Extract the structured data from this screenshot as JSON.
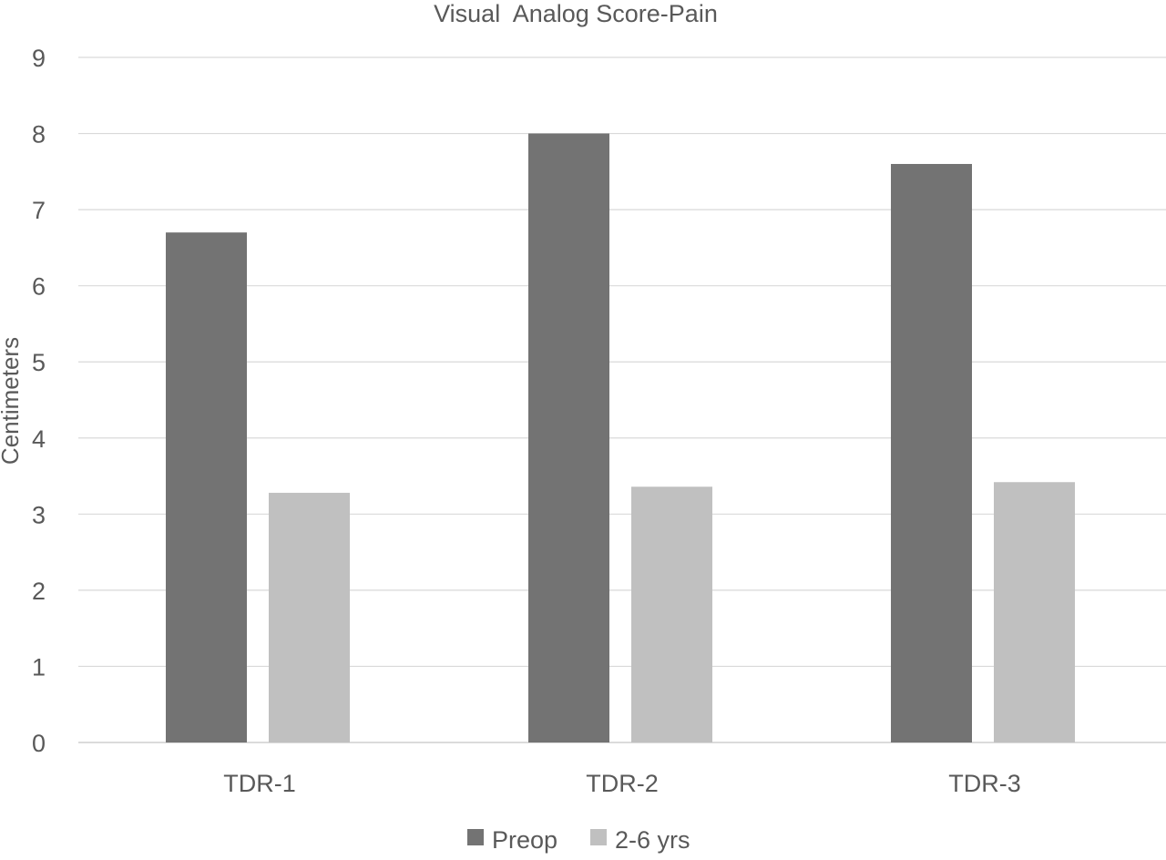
{
  "chart_data": {
    "type": "bar",
    "title": "Visual  Analog Score-Pain",
    "xlabel": "",
    "ylabel": "Centimeters",
    "ylim": [
      0,
      9
    ],
    "yticks": [
      0,
      1,
      2,
      3,
      4,
      5,
      6,
      7,
      8,
      9
    ],
    "categories": [
      "TDR-1",
      "TDR-2",
      "TDR-3"
    ],
    "series": [
      {
        "name": "Preop",
        "values": [
          6.7,
          8.0,
          7.6
        ],
        "color": "#737373"
      },
      {
        "name": "2-6 yrs",
        "values": [
          3.28,
          3.36,
          3.42
        ],
        "color": "#c0c0c0"
      }
    ],
    "grid": true,
    "legend": "bottom"
  }
}
